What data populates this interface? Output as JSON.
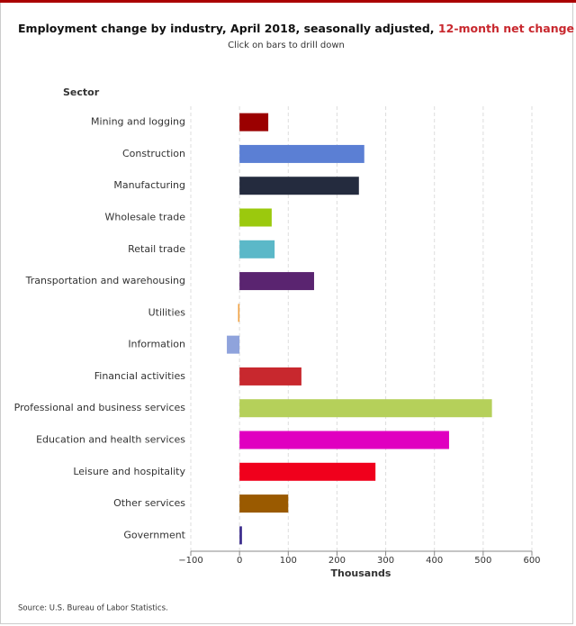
{
  "chart_data": {
    "type": "bar",
    "orientation": "horizontal",
    "title": "Employment change by industry, April 2018, seasonally adjusted,",
    "title_highlight": "12-month net change",
    "subtitle": "Click on bars to drill down",
    "y_label": "Sector",
    "x_label": "Thousands",
    "source": "Source: U.S. Bureau of Labor Statistics.",
    "categories": [
      "Mining and logging",
      "Construction",
      "Manufacturing",
      "Wholesale trade",
      "Retail trade",
      "Transportation and warehousing",
      "Utilities",
      "Information",
      "Financial activities",
      "Professional and business services",
      "Education and health services",
      "Leisure and hospitality",
      "Other services",
      "Government"
    ],
    "values": [
      59,
      256,
      245,
      66,
      72,
      153,
      -3,
      -26,
      127,
      518,
      430,
      279,
      100,
      5
    ],
    "colors": [
      "#9b0000",
      "#5b7fd4",
      "#242b3e",
      "#9bc90d",
      "#5bb8c8",
      "#5a2470",
      "#f0a040",
      "#8fa3dc",
      "#c8282e",
      "#b5d05a",
      "#e000c0",
      "#f0001c",
      "#9a5a00",
      "#3a2a8c"
    ],
    "xlim": [
      -100,
      600
    ],
    "xticks": [
      {
        "value": -100,
        "label": "−100"
      },
      0,
      100,
      200,
      300,
      400,
      500,
      600
    ],
    "grid": true
  }
}
